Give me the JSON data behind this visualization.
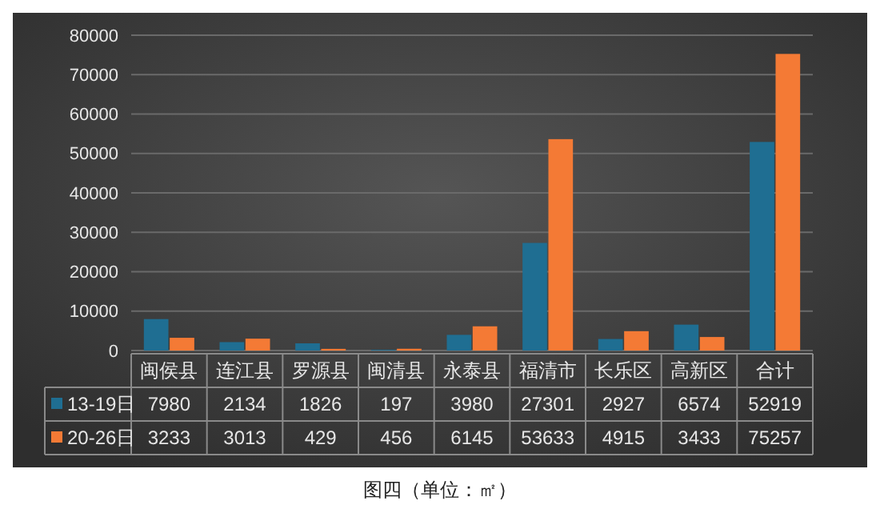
{
  "chart_data": {
    "type": "bar",
    "categories": [
      "闽侯县",
      "连江县",
      "罗源县",
      "闽清县",
      "永泰县",
      "福清市",
      "长乐区",
      "高新区",
      "合计"
    ],
    "series": [
      {
        "name": "13-19日",
        "color": "#1f6e92",
        "values": [
          7980,
          2134,
          1826,
          197,
          3980,
          27301,
          2927,
          6574,
          52919
        ]
      },
      {
        "name": "20-26日",
        "color": "#f47a35",
        "values": [
          3233,
          3013,
          429,
          456,
          6145,
          53633,
          4915,
          3433,
          75257
        ]
      }
    ],
    "ylim": [
      0,
      80000
    ],
    "yticks": [
      0,
      10000,
      20000,
      30000,
      40000,
      50000,
      60000,
      70000,
      80000
    ],
    "grid": "y",
    "data_labels": true,
    "legend": "bottom left",
    "annotations": [
      "图四（单位：㎡）"
    ]
  }
}
